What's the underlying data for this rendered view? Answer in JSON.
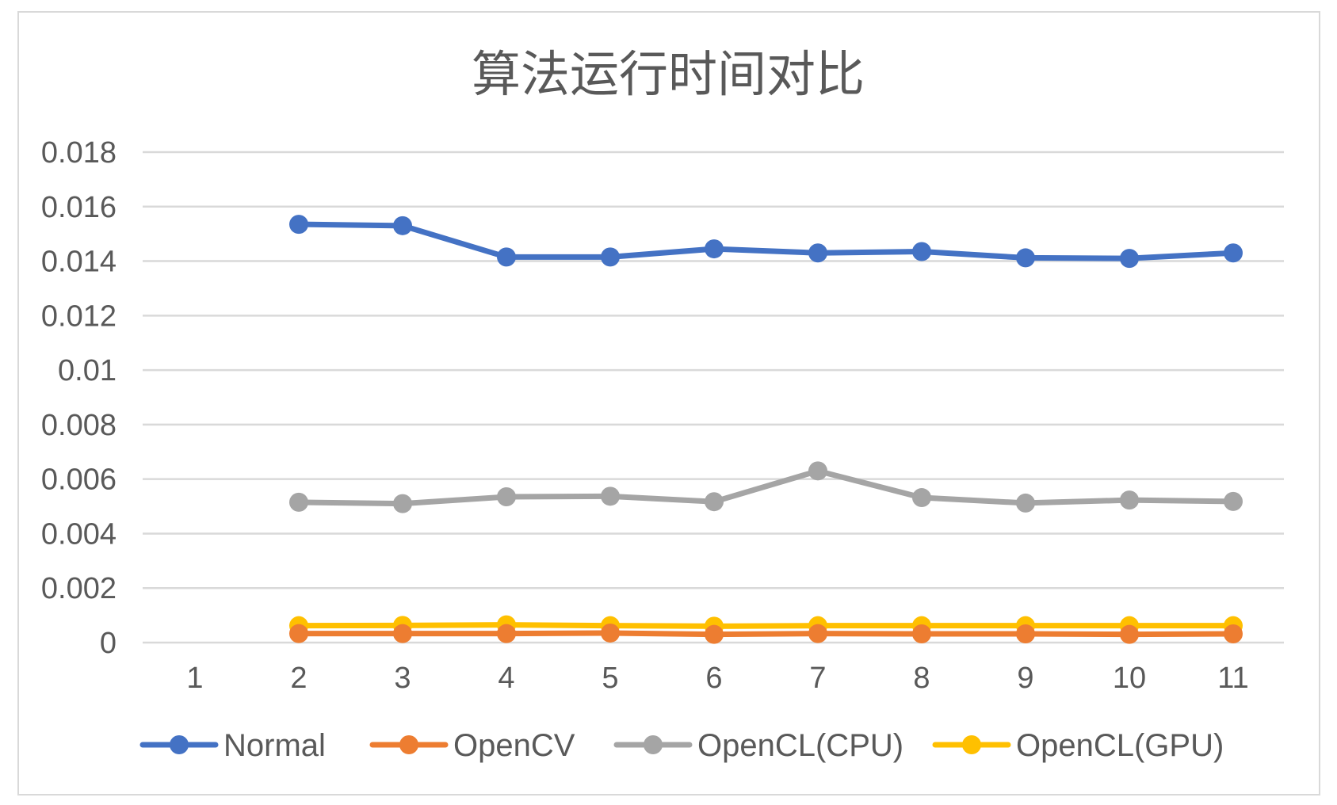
{
  "chart_data": {
    "type": "line",
    "title": "算法运行时间对比",
    "xlabel": "",
    "ylabel": "",
    "x": [
      "1",
      "2",
      "3",
      "4",
      "5",
      "6",
      "7",
      "8",
      "9",
      "10",
      "11"
    ],
    "ylim": [
      0,
      0.018
    ],
    "yticks": [
      "0",
      "0.002",
      "0.004",
      "0.006",
      "0.008",
      "0.01",
      "0.012",
      "0.014",
      "0.016",
      "0.018"
    ],
    "grid": true,
    "legend_position": "bottom",
    "series": [
      {
        "name": "Normal",
        "color": "#4472C4",
        "values": [
          null,
          0.01535,
          0.0153,
          0.01415,
          0.01415,
          0.01445,
          0.0143,
          0.01435,
          0.01412,
          0.0141,
          0.0143
        ]
      },
      {
        "name": "OpenCV",
        "color": "#ED7D31",
        "values": [
          null,
          0.00033,
          0.00033,
          0.00033,
          0.00035,
          0.0003,
          0.00033,
          0.00032,
          0.00032,
          0.0003,
          0.00032
        ]
      },
      {
        "name": "OpenCL(CPU)",
        "color": "#A5A5A5",
        "values": [
          null,
          0.00515,
          0.0051,
          0.00535,
          0.00537,
          0.00517,
          0.0063,
          0.00532,
          0.00512,
          0.00523,
          0.00518
        ]
      },
      {
        "name": "OpenCL(GPU)",
        "color": "#FFC000",
        "values": [
          null,
          0.00062,
          0.00063,
          0.00065,
          0.00062,
          0.0006,
          0.00062,
          0.00062,
          0.00062,
          0.00062,
          0.00062
        ]
      }
    ]
  }
}
